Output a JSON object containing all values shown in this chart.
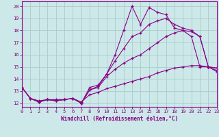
{
  "x": [
    0,
    1,
    2,
    3,
    4,
    5,
    6,
    7,
    8,
    9,
    10,
    11,
    12,
    13,
    14,
    15,
    16,
    17,
    18,
    19,
    20,
    21,
    22,
    23
  ],
  "line1": [
    13.3,
    12.4,
    12.1,
    12.3,
    12.2,
    12.3,
    12.4,
    12.0,
    13.3,
    13.5,
    14.4,
    16.0,
    18.0,
    20.0,
    18.5,
    19.9,
    19.5,
    19.3,
    18.2,
    18.0,
    17.5,
    15.0,
    15.0,
    14.6
  ],
  "line2": [
    13.3,
    12.4,
    12.1,
    12.3,
    12.2,
    12.3,
    12.4,
    12.0,
    13.1,
    13.4,
    14.4,
    15.5,
    16.5,
    17.5,
    17.8,
    18.5,
    18.8,
    19.0,
    18.5,
    18.2,
    18.0,
    17.5,
    15.0,
    14.9
  ],
  "line3": [
    13.3,
    12.4,
    12.1,
    12.3,
    12.2,
    12.3,
    12.4,
    12.0,
    13.1,
    13.3,
    14.2,
    14.8,
    15.3,
    15.7,
    16.0,
    16.5,
    17.0,
    17.5,
    17.8,
    18.0,
    17.9,
    17.5,
    15.0,
    14.9
  ],
  "line4": [
    13.3,
    12.4,
    12.2,
    12.3,
    12.3,
    12.3,
    12.4,
    12.1,
    12.7,
    12.9,
    13.2,
    13.4,
    13.6,
    13.8,
    14.0,
    14.2,
    14.5,
    14.7,
    14.9,
    15.0,
    15.1,
    15.1,
    15.0,
    14.7
  ],
  "color": "#880088",
  "bg_color": "#cce8e8",
  "grid_color": "#aacccc",
  "xlabel": "Windchill (Refroidissement éolien,°C)",
  "xlim": [
    0,
    23
  ],
  "ylim": [
    11.7,
    20.4
  ],
  "yticks": [
    12,
    13,
    14,
    15,
    16,
    17,
    18,
    19,
    20
  ],
  "xticks": [
    0,
    1,
    2,
    3,
    4,
    5,
    6,
    7,
    8,
    9,
    10,
    11,
    12,
    13,
    14,
    15,
    16,
    17,
    18,
    19,
    20,
    21,
    22,
    23
  ]
}
